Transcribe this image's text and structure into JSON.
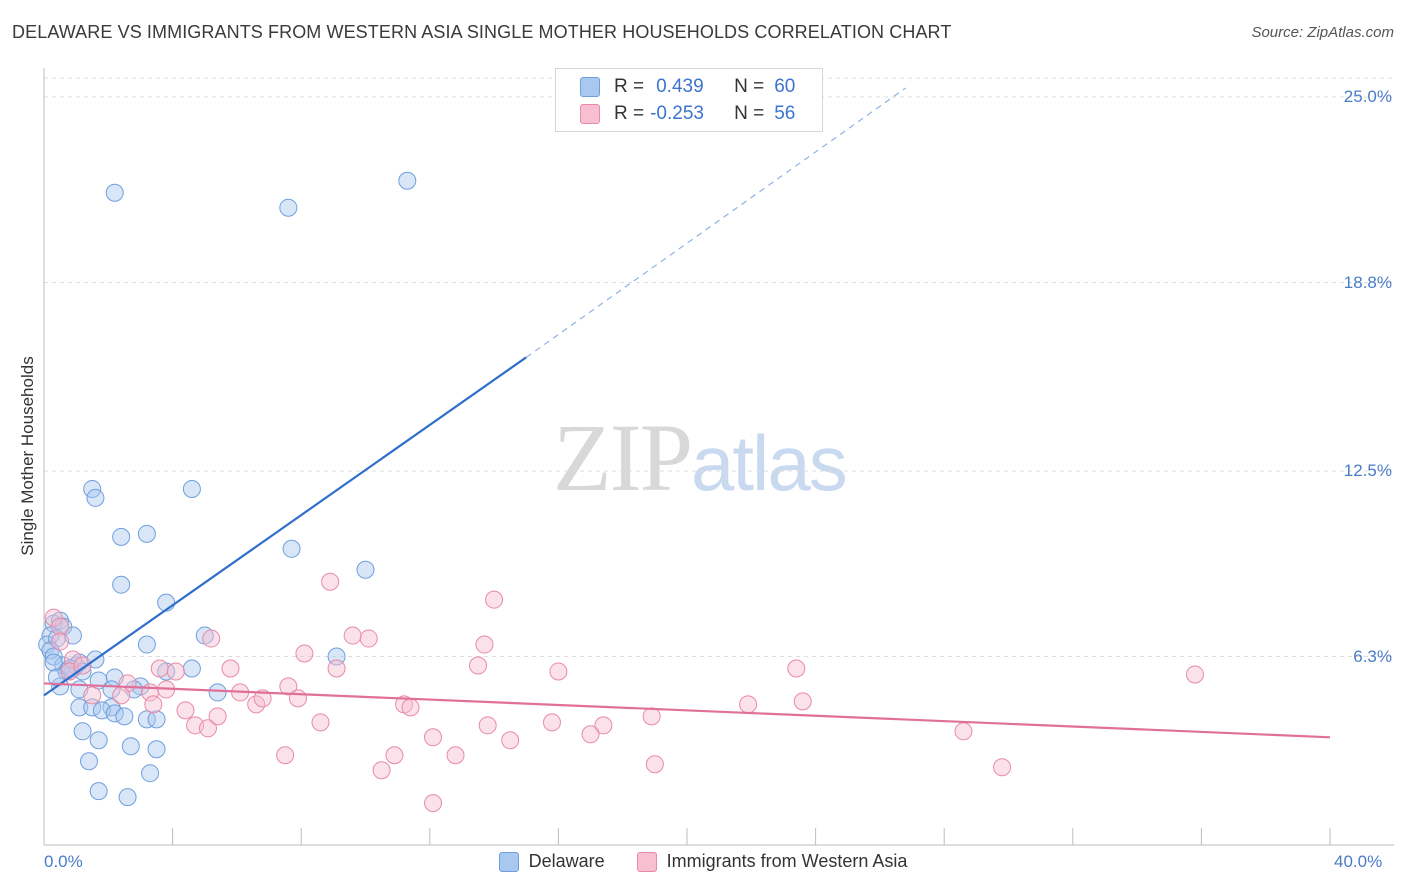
{
  "title": "DELAWARE VS IMMIGRANTS FROM WESTERN ASIA SINGLE MOTHER HOUSEHOLDS CORRELATION CHART",
  "source": "Source: ZipAtlas.com",
  "watermark": {
    "zip": "ZIP",
    "atlas": "atlas"
  },
  "legend_top": {
    "rows": [
      {
        "r_label": "R =",
        "r_value": "0.439",
        "n_label": "N =",
        "n_value": "60",
        "color": "#a9c8f0",
        "border": "#6f9fdc"
      },
      {
        "r_label": "R =",
        "r_value": "-0.253",
        "n_label": "N =",
        "n_value": "56",
        "color": "#f7bfd0",
        "border": "#e88aa8"
      }
    ]
  },
  "legend_bottom": [
    {
      "label": "Delaware",
      "color": "#a9c8f0",
      "border": "#6f9fdc"
    },
    {
      "label": "Immigrants from Western Asia",
      "color": "#f7bfd0",
      "border": "#e88aa8"
    }
  ],
  "chart_data": {
    "type": "scatter",
    "title": "DELAWARE VS IMMIGRANTS FROM WESTERN ASIA SINGLE MOTHER HOUSEHOLDS CORRELATION CHART",
    "xlabel": "",
    "ylabel": "Single Mother Households",
    "xlim": [
      0,
      40
    ],
    "ylim": [
      0,
      25.0
    ],
    "x_tick_labels": [
      "0.0%",
      "40.0%"
    ],
    "y_ticks": [
      6.3,
      12.5,
      18.8,
      25.0
    ],
    "y_tick_labels": [
      "6.3%",
      "12.5%",
      "18.8%",
      "25.0%"
    ],
    "grid": true,
    "series": [
      {
        "name": "Delaware",
        "color": "#6f9fdc",
        "fill": "#a9c8f0",
        "line_color": "#2f6fcc",
        "trend": {
          "x1": 0.0,
          "y1": 5.0,
          "x2": 15.0,
          "y2": 16.3,
          "dash_x2": 26.8,
          "dash_y2": 25.3
        },
        "points": [
          [
            2.2,
            21.8
          ],
          [
            7.6,
            21.3
          ],
          [
            11.3,
            22.2
          ],
          [
            1.5,
            11.9
          ],
          [
            1.6,
            11.6
          ],
          [
            4.6,
            11.9
          ],
          [
            2.4,
            10.3
          ],
          [
            3.2,
            10.4
          ],
          [
            7.7,
            9.9
          ],
          [
            10.0,
            9.2
          ],
          [
            2.4,
            8.7
          ],
          [
            3.8,
            8.1
          ],
          [
            0.3,
            7.4
          ],
          [
            0.5,
            7.5
          ],
          [
            0.6,
            7.3
          ],
          [
            0.9,
            7.0
          ],
          [
            0.2,
            7.0
          ],
          [
            0.1,
            6.7
          ],
          [
            0.4,
            6.9
          ],
          [
            0.2,
            6.5
          ],
          [
            0.3,
            6.3
          ],
          [
            3.2,
            6.7
          ],
          [
            5.0,
            7.0
          ],
          [
            9.1,
            6.3
          ],
          [
            0.6,
            6.0
          ],
          [
            0.9,
            5.9
          ],
          [
            1.0,
            6.0
          ],
          [
            1.1,
            6.1
          ],
          [
            1.6,
            6.2
          ],
          [
            1.2,
            5.8
          ],
          [
            0.7,
            5.8
          ],
          [
            0.8,
            5.9
          ],
          [
            4.6,
            5.9
          ],
          [
            3.8,
            5.8
          ],
          [
            0.5,
            5.3
          ],
          [
            1.7,
            5.5
          ],
          [
            2.2,
            5.6
          ],
          [
            1.1,
            5.2
          ],
          [
            2.1,
            5.2
          ],
          [
            3.0,
            5.3
          ],
          [
            2.8,
            5.2
          ],
          [
            5.4,
            5.1
          ],
          [
            1.1,
            4.6
          ],
          [
            1.5,
            4.6
          ],
          [
            2.1,
            4.6
          ],
          [
            1.8,
            4.5
          ],
          [
            2.2,
            4.4
          ],
          [
            2.5,
            4.3
          ],
          [
            3.2,
            4.2
          ],
          [
            3.5,
            4.2
          ],
          [
            1.2,
            3.8
          ],
          [
            1.7,
            3.5
          ],
          [
            2.7,
            3.3
          ],
          [
            3.5,
            3.2
          ],
          [
            1.4,
            2.8
          ],
          [
            3.3,
            2.4
          ],
          [
            1.7,
            1.8
          ],
          [
            2.6,
            1.6
          ],
          [
            0.3,
            6.1
          ],
          [
            0.4,
            5.6
          ]
        ]
      },
      {
        "name": "Immigrants from Western Asia",
        "color": "#e88aa8",
        "fill": "#f7bfd0",
        "line_color": "#e0709a",
        "trend": {
          "x1": 0.0,
          "y1": 5.4,
          "x2": 40.0,
          "y2": 3.6
        },
        "points": [
          [
            0.3,
            7.6
          ],
          [
            0.5,
            7.3
          ],
          [
            0.9,
            6.2
          ],
          [
            0.8,
            5.8
          ],
          [
            1.2,
            6.0
          ],
          [
            0.5,
            6.8
          ],
          [
            8.9,
            8.8
          ],
          [
            14.0,
            8.2
          ],
          [
            5.2,
            6.9
          ],
          [
            9.6,
            7.0
          ],
          [
            10.1,
            6.9
          ],
          [
            13.7,
            6.7
          ],
          [
            8.1,
            6.4
          ],
          [
            3.6,
            5.9
          ],
          [
            4.1,
            5.8
          ],
          [
            5.8,
            5.9
          ],
          [
            9.1,
            5.9
          ],
          [
            13.5,
            6.0
          ],
          [
            16.0,
            5.8
          ],
          [
            23.4,
            5.9
          ],
          [
            35.8,
            5.7
          ],
          [
            1.5,
            5.0
          ],
          [
            2.6,
            5.4
          ],
          [
            3.3,
            5.1
          ],
          [
            2.4,
            5.0
          ],
          [
            3.4,
            4.7
          ],
          [
            3.8,
            5.2
          ],
          [
            6.1,
            5.1
          ],
          [
            6.6,
            4.7
          ],
          [
            6.8,
            4.9
          ],
          [
            7.6,
            5.3
          ],
          [
            7.9,
            4.9
          ],
          [
            4.4,
            4.5
          ],
          [
            4.7,
            4.0
          ],
          [
            5.1,
            3.9
          ],
          [
            5.4,
            4.3
          ],
          [
            8.6,
            4.1
          ],
          [
            11.2,
            4.7
          ],
          [
            11.4,
            4.6
          ],
          [
            13.8,
            4.0
          ],
          [
            15.8,
            4.1
          ],
          [
            17.4,
            4.0
          ],
          [
            18.9,
            4.3
          ],
          [
            21.9,
            4.7
          ],
          [
            23.6,
            4.8
          ],
          [
            28.6,
            3.8
          ],
          [
            17.0,
            3.7
          ],
          [
            12.1,
            3.6
          ],
          [
            14.5,
            3.5
          ],
          [
            7.5,
            3.0
          ],
          [
            10.9,
            3.0
          ],
          [
            12.8,
            3.0
          ],
          [
            19.0,
            2.7
          ],
          [
            10.5,
            2.5
          ],
          [
            29.8,
            2.6
          ],
          [
            12.1,
            1.4
          ]
        ]
      }
    ]
  }
}
